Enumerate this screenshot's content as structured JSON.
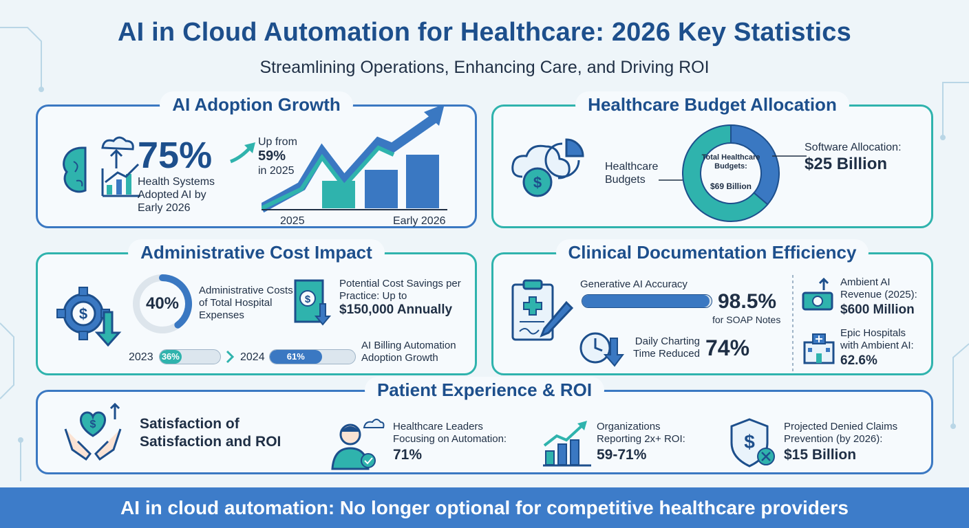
{
  "header": {
    "title": "AI in Cloud Automation for Healthcare: 2026 Key Statistics",
    "subtitle": "Streamlining Operations, Enhancing Care, and Driving ROI"
  },
  "adoption": {
    "title": "AI Adoption Growth",
    "stat": "75%",
    "stat_label": "Health Systems Adopted AI by Early 2026",
    "up_from_label": "Up from",
    "up_from_value": "59%",
    "up_from_year": "in 2025",
    "axis_start": "2025",
    "axis_end": "Early 2026"
  },
  "budget": {
    "title": "Healthcare Budget Allocation",
    "left_label": "Healthcare Budgets",
    "center_label": "Total Healthcare Budgets:",
    "center_value": "$69 Billion",
    "software_label": "Software Allocation:",
    "software_value": "$25 Billion",
    "total_billion": 69,
    "software_billion": 25
  },
  "admin": {
    "title": "Administrative Cost Impact",
    "ring_value": "40%",
    "ring_fraction": 0.4,
    "ring_label": "Administrative Costs of Total Hospital Expenses",
    "savings_label": "Potential Cost Savings per Practice: Up to",
    "savings_value": "$150,000 Annually",
    "year_a": "2023",
    "pct_a": "36%",
    "frac_a": 0.36,
    "year_b": "2024",
    "pct_b": "61%",
    "frac_b": 0.61,
    "growth_label": "AI Billing Automation Adoption Growth"
  },
  "clinical": {
    "title": "Clinical Documentation Efficiency",
    "accuracy_label": "Generative AI Accuracy",
    "accuracy_value": "98.5%",
    "accuracy_fraction": 0.985,
    "accuracy_sub": "for SOAP Notes",
    "charting_label": "Daily Charting Time Reduced",
    "charting_value": "74%",
    "ambient_label": "Ambient AI Revenue (2025):",
    "ambient_value": "$600 Million",
    "epic_label": "Epic Hospitals with Ambient AI:",
    "epic_value": "62.6%"
  },
  "patient": {
    "title": "Patient Experience & ROI",
    "satisfaction": "Satisfaction of Satisfaction and ROI",
    "leaders_label": "Healthcare Leaders Focusing on Automation:",
    "leaders_value": "71%",
    "roi_label": "Organizations Reporting 2x+ ROI:",
    "roi_value": "59-71%",
    "claims_label": "Projected Denied Claims Prevention (by 2026):",
    "claims_value": "$15 Billion"
  },
  "footer": {
    "text": "AI in cloud automation: No longer optional for competitive healthcare providers"
  },
  "colors": {
    "blue": "#3a78c2",
    "dark_blue": "#1d4f8c",
    "teal": "#2fb3ad",
    "footer": "#3d7cc9"
  }
}
